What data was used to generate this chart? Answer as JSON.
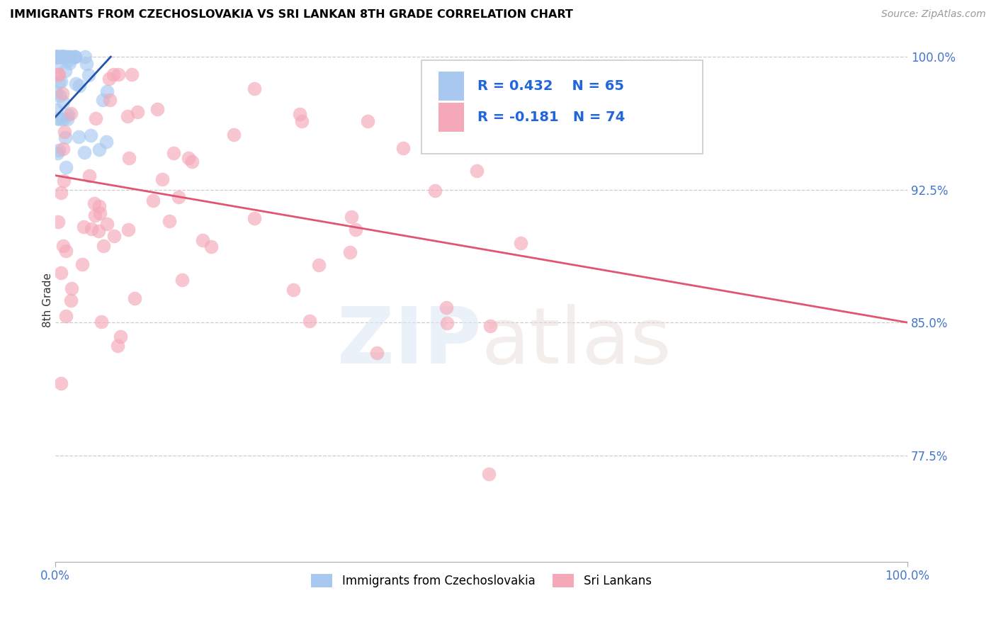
{
  "title": "IMMIGRANTS FROM CZECHOSLOVAKIA VS SRI LANKAN 8TH GRADE CORRELATION CHART",
  "source": "Source: ZipAtlas.com",
  "ylabel": "8th Grade",
  "ytick_labels": [
    "100.0%",
    "92.5%",
    "85.0%",
    "77.5%"
  ],
  "ytick_values": [
    1.0,
    0.925,
    0.85,
    0.775
  ],
  "blue_R": 0.432,
  "blue_N": 65,
  "pink_R": -0.181,
  "pink_N": 74,
  "blue_color": "#a8c8f0",
  "pink_color": "#f5a8b8",
  "blue_line_color": "#2255aa",
  "pink_line_color": "#e05570",
  "legend_label_blue": "Immigrants from Czechoslovakia",
  "legend_label_pink": "Sri Lankans",
  "pink_line_x0": 0.0,
  "pink_line_y0": 0.933,
  "pink_line_x1": 1.0,
  "pink_line_y1": 0.85,
  "blue_line_x0": 0.0,
  "blue_line_y0": 0.966,
  "blue_line_x1": 0.065,
  "blue_line_y1": 1.0,
  "xmin": 0.0,
  "xmax": 1.0,
  "ymin": 0.715,
  "ymax": 1.01
}
